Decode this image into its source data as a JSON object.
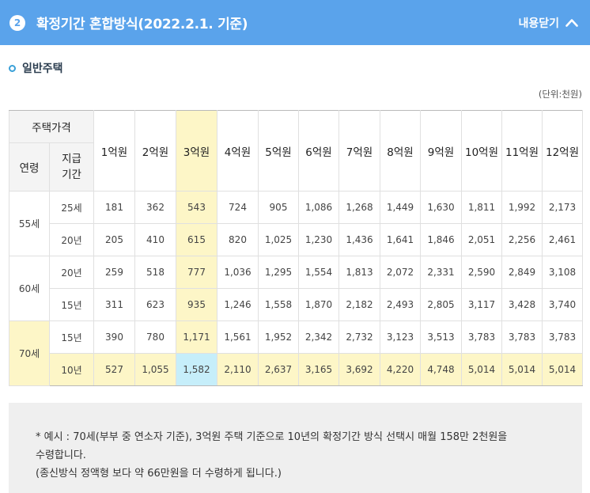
{
  "header": {
    "step_number": "2",
    "title": "확정기간 혼합방식(2022.2.1. 기준)",
    "collapse_label": "내용닫기",
    "bg_color": "#5aa3eb"
  },
  "section": {
    "title": "일반주택"
  },
  "unit_label": "(단위:천원)",
  "table": {
    "header_price": "주택가격",
    "header_age": "연령",
    "header_period": "지급\n기간",
    "columns": [
      "1억원",
      "2억원",
      "3억원",
      "4억원",
      "5억원",
      "6억원",
      "7억원",
      "8억원",
      "9억원",
      "10억원",
      "11억원",
      "12억원"
    ],
    "groups": [
      {
        "age": "55세",
        "rows": [
          {
            "period": "25세",
            "values": [
              "181",
              "362",
              "543",
              "724",
              "905",
              "1,086",
              "1,268",
              "1,449",
              "1,630",
              "1,811",
              "1,992",
              "2,173"
            ]
          },
          {
            "period": "20년",
            "values": [
              "205",
              "410",
              "615",
              "820",
              "1,025",
              "1,230",
              "1,436",
              "1,641",
              "1,846",
              "2,051",
              "2,256",
              "2,461"
            ]
          }
        ]
      },
      {
        "age": "60세",
        "rows": [
          {
            "period": "20년",
            "values": [
              "259",
              "518",
              "777",
              "1,036",
              "1,295",
              "1,554",
              "1,813",
              "2,072",
              "2,331",
              "2,590",
              "2,849",
              "3,108"
            ]
          },
          {
            "period": "15년",
            "values": [
              "311",
              "623",
              "935",
              "1,246",
              "1,558",
              "1,870",
              "2,182",
              "2,493",
              "2,805",
              "3,117",
              "3,428",
              "3,740"
            ]
          }
        ]
      },
      {
        "age": "70세",
        "rows": [
          {
            "period": "15년",
            "values": [
              "390",
              "780",
              "1,171",
              "1,561",
              "1,952",
              "2,342",
              "2,732",
              "3,123",
              "3,513",
              "3,783",
              "3,783",
              "3,783"
            ]
          },
          {
            "period": "10년",
            "values": [
              "527",
              "1,055",
              "1,582",
              "2,110",
              "2,637",
              "3,165",
              "3,692",
              "4,220",
              "4,748",
              "5,014",
              "5,014",
              "5,014"
            ]
          }
        ]
      }
    ]
  },
  "note": {
    "line1": "* 예시 : 70세(부부 중 연소자 기준), 3억원 주택 기준으로 10년의 확정기간 방식 선택시 매월 158만 2천원을",
    "line2": "수령합니다.",
    "line3": "(종신방식 정액형 보다 약 66만원을 더 수령하게 됩니다.)"
  }
}
